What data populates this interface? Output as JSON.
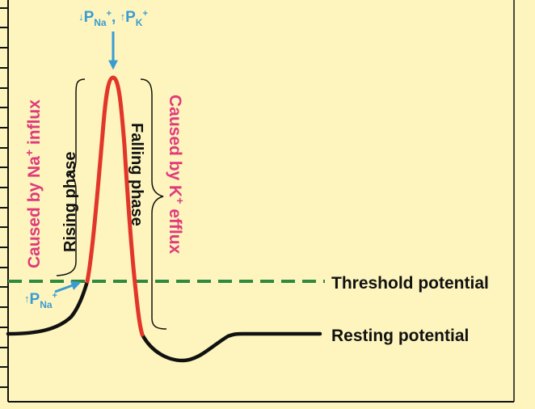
{
  "diagram": {
    "labels": {
      "top_permeability": {
        "p1": "P",
        "s1": "Na",
        "sup1": "+",
        "sep": ", ",
        "p2": "P",
        "s2": "K",
        "sup2": "+"
      },
      "left_permeability": {
        "p": "P",
        "sub": "Na",
        "sup": "+"
      },
      "rising_phase": "Rising phase",
      "falling_phase": "Falling phase",
      "na_influx": {
        "pre": "Caused by Na",
        "sup": "+",
        "post": " influx"
      },
      "k_efflux": {
        "pre": "Caused by K",
        "sup": "+",
        "post": " efflux"
      },
      "threshold": "Threshold potential",
      "resting": "Resting potential"
    },
    "colors": {
      "background": "#fdf5bd",
      "curve": "#111111",
      "curve_highlight": "#e2362a",
      "threshold_line": "#2f8a3e",
      "arrow": "#3a9bd2",
      "cause_text": "#e03a7c",
      "permeability_text": "#3a9bd2",
      "label_text": "#111111"
    },
    "icons": {
      "down_arrow": "↓",
      "up_arrow": "↑"
    }
  }
}
